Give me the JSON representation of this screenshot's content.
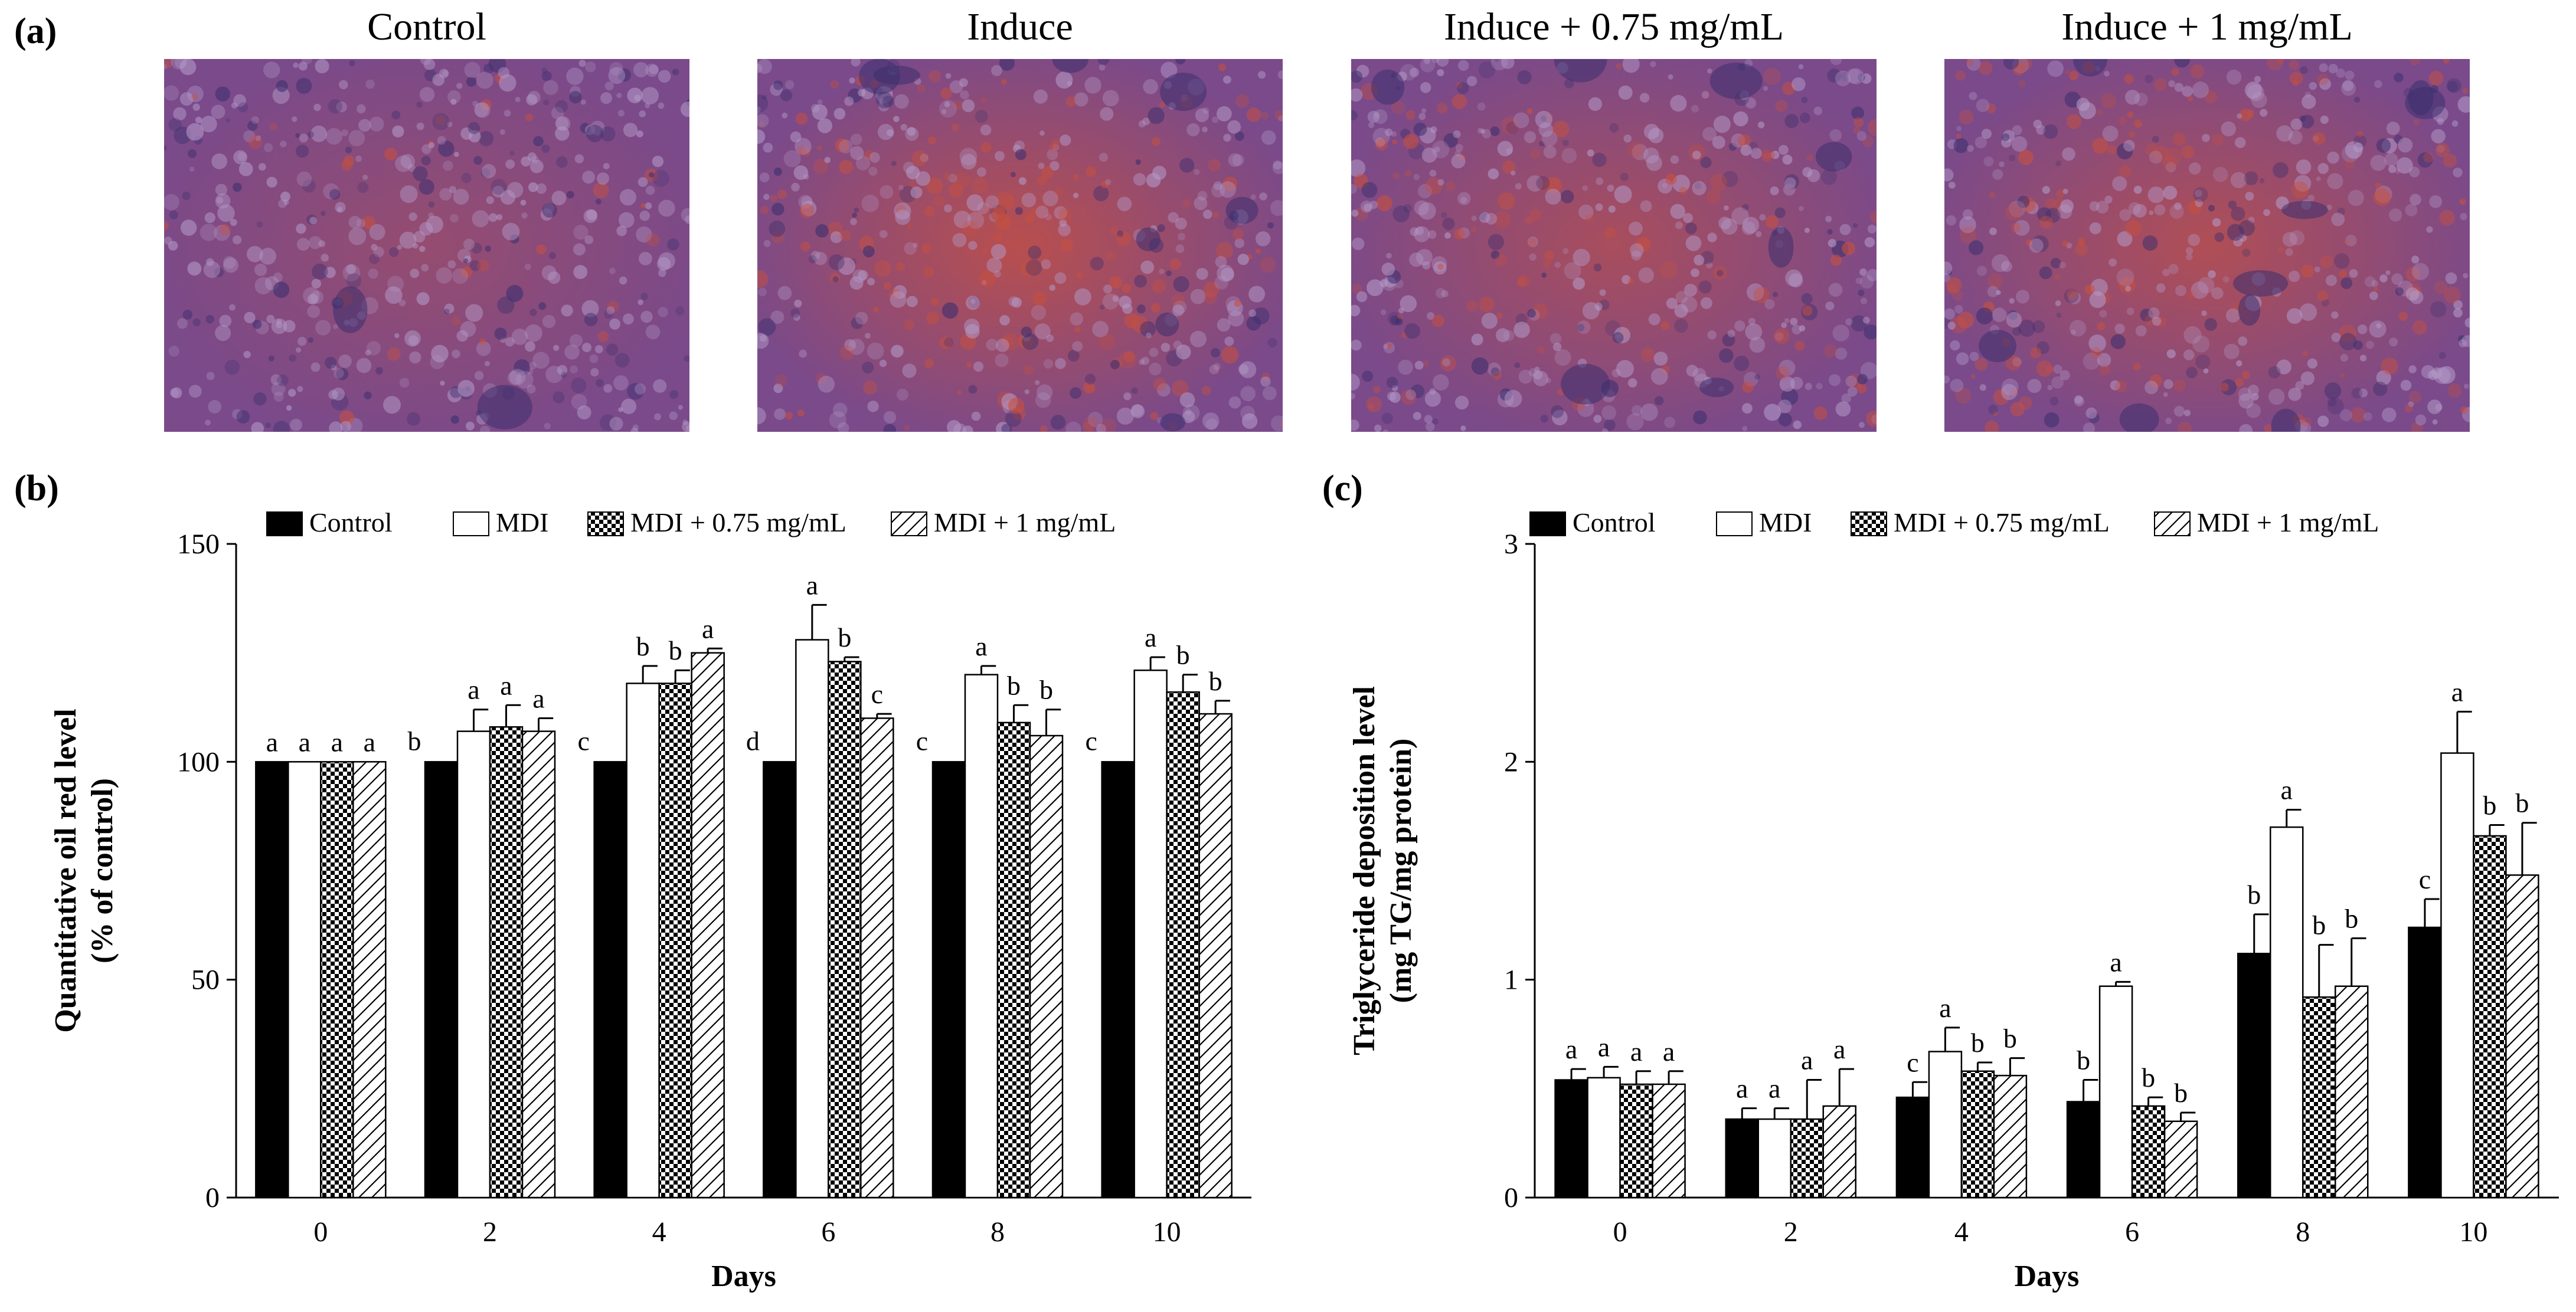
{
  "panel_a": {
    "letter": "(a)",
    "images": [
      {
        "title": "Control"
      },
      {
        "title": "Induce"
      },
      {
        "title": "Induce + 0.75 mg/mL"
      },
      {
        "title": "Induce + 1 mg/mL"
      }
    ]
  },
  "colors": {
    "control": "#000000",
    "mdi": "#ffffff",
    "stain_base": "#7a4a8a",
    "stain_red": "#c8503e",
    "stain_dark": "#3c2f6e"
  },
  "chart_data": [
    {
      "panel_letter": "(b)",
      "type": "bar",
      "xlabel": "Days",
      "ylabel_line1": "Quantitative oil red level",
      "ylabel_line2": "(% of control)",
      "ylim": [
        0,
        150
      ],
      "yticks": [
        0,
        50,
        100,
        150
      ],
      "categories": [
        "0",
        "2",
        "4",
        "6",
        "8",
        "10"
      ],
      "legend_position": "top",
      "series": [
        {
          "name": "Control",
          "fill": "solid",
          "values": [
            100,
            100,
            100,
            100,
            100,
            100
          ],
          "errors": [
            0,
            0,
            0,
            0,
            0,
            0
          ],
          "letters": [
            "a",
            "b",
            "c",
            "d",
            "c",
            "c"
          ]
        },
        {
          "name": "MDI",
          "fill": "white",
          "values": [
            100,
            107,
            118,
            128,
            120,
            121
          ],
          "errors": [
            0,
            5,
            4,
            8,
            2,
            3
          ],
          "letters": [
            "a",
            "a",
            "b",
            "a",
            "a",
            "a"
          ]
        },
        {
          "name": "MDI + 0.75 mg/mL",
          "fill": "checker",
          "values": [
            100,
            108,
            118,
            123,
            109,
            116
          ],
          "errors": [
            0,
            5,
            3,
            1,
            4,
            4
          ],
          "letters": [
            "a",
            "a",
            "b",
            "b",
            "b",
            "b"
          ]
        },
        {
          "name": "MDI + 1 mg/mL",
          "fill": "hatch",
          "values": [
            100,
            107,
            125,
            110,
            106,
            111
          ],
          "errors": [
            0,
            3,
            1,
            1,
            6,
            3
          ],
          "letters": [
            "a",
            "a",
            "a",
            "c",
            "b",
            "b"
          ]
        }
      ]
    },
    {
      "panel_letter": "(c)",
      "type": "bar",
      "xlabel": "Days",
      "ylabel_line1": "Triglyceride deposition level",
      "ylabel_line2": "(mg TG/mg protein)",
      "ylim": [
        0,
        3
      ],
      "yticks": [
        0,
        1,
        2,
        3
      ],
      "categories": [
        "0",
        "2",
        "4",
        "6",
        "8",
        "10"
      ],
      "legend_position": "top",
      "series": [
        {
          "name": "Control",
          "fill": "solid",
          "values": [
            0.54,
            0.36,
            0.46,
            0.44,
            1.12,
            1.24
          ],
          "errors": [
            0.05,
            0.05,
            0.07,
            0.1,
            0.18,
            0.13
          ],
          "letters": [
            "a",
            "a",
            "c",
            "b",
            "b",
            "c"
          ]
        },
        {
          "name": "MDI",
          "fill": "white",
          "values": [
            0.55,
            0.36,
            0.67,
            0.97,
            1.7,
            2.04
          ],
          "errors": [
            0.05,
            0.05,
            0.11,
            0.02,
            0.08,
            0.19
          ],
          "letters": [
            "a",
            "a",
            "a",
            "a",
            "a",
            "a"
          ]
        },
        {
          "name": "MDI + 0.75 mg/mL",
          "fill": "checker",
          "values": [
            0.52,
            0.36,
            0.58,
            0.42,
            0.92,
            1.66
          ],
          "errors": [
            0.06,
            0.18,
            0.04,
            0.04,
            0.24,
            0.05
          ],
          "letters": [
            "a",
            "a",
            "b",
            "b",
            "b",
            "b"
          ]
        },
        {
          "name": "MDI + 1 mg/mL",
          "fill": "hatch",
          "values": [
            0.52,
            0.42,
            0.56,
            0.35,
            0.97,
            1.48
          ],
          "errors": [
            0.06,
            0.17,
            0.08,
            0.04,
            0.22,
            0.24
          ],
          "letters": [
            "a",
            "a",
            "b",
            "b",
            "b",
            "b"
          ]
        }
      ]
    }
  ]
}
